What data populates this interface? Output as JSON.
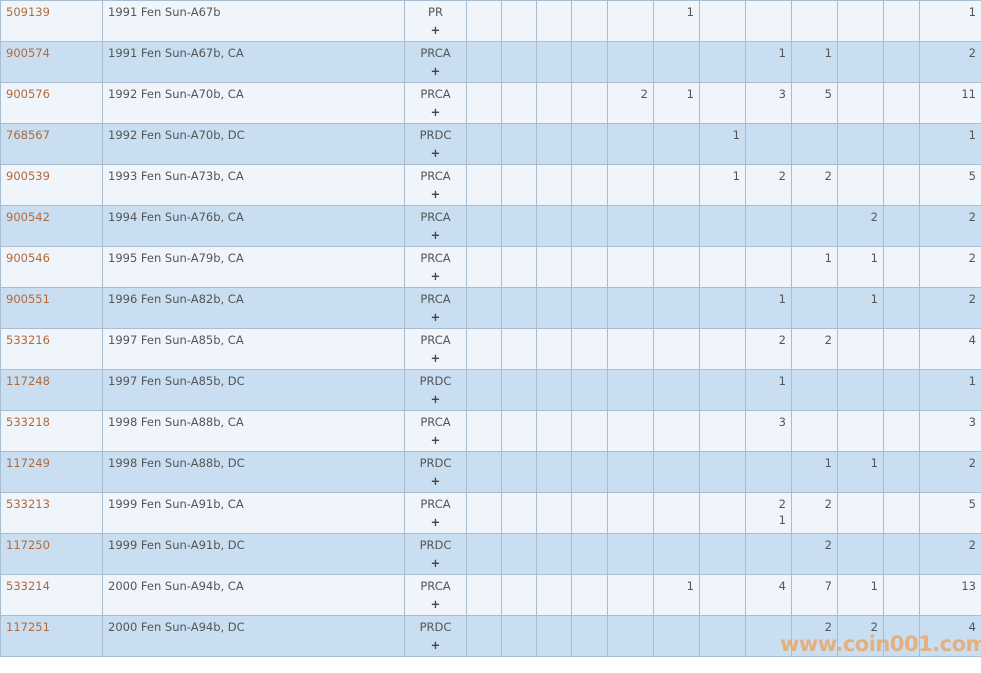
{
  "watermark": "www.coin001.com",
  "colors": {
    "link": "#b5683a",
    "row_odd": "#eff5fb",
    "row_even": "#c9dff1",
    "border": "#a9bdd0"
  },
  "expand_label": "+",
  "rows": [
    {
      "id": "509139",
      "desc": "1991 Fen Sun-A67b",
      "type": "PR",
      "grades": [
        "",
        "",
        "",
        "",
        "",
        "1",
        "",
        "",
        "",
        "",
        "",
        ""
      ],
      "total": "1"
    },
    {
      "id": "900574",
      "desc": "1991 Fen Sun-A67b, CA",
      "type": "PRCA",
      "grades": [
        "",
        "",
        "",
        "",
        "",
        "",
        "",
        "1",
        "1",
        "",
        "",
        ""
      ],
      "total": "2"
    },
    {
      "id": "900576",
      "desc": "1992 Fen Sun-A70b, CA",
      "type": "PRCA",
      "grades": [
        "",
        "",
        "",
        "",
        "2",
        "1",
        "",
        "3",
        "5",
        "",
        ""
      ],
      "total": "11"
    },
    {
      "id": "768567",
      "desc": "1992 Fen Sun-A70b, DC",
      "type": "PRDC",
      "grades": [
        "",
        "",
        "",
        "",
        "",
        "",
        "1",
        "",
        "",
        "",
        ""
      ],
      "total": "1"
    },
    {
      "id": "900539",
      "desc": "1993 Fen Sun-A73b, CA",
      "type": "PRCA",
      "grades": [
        "",
        "",
        "",
        "",
        "",
        "",
        "1",
        "2",
        "2",
        "",
        ""
      ],
      "total": "5"
    },
    {
      "id": "900542",
      "desc": "1994 Fen Sun-A76b, CA",
      "type": "PRCA",
      "grades": [
        "",
        "",
        "",
        "",
        "",
        "",
        "",
        "",
        "",
        "2",
        ""
      ],
      "total": "2"
    },
    {
      "id": "900546",
      "desc": "1995 Fen Sun-A79b, CA",
      "type": "PRCA",
      "grades": [
        "",
        "",
        "",
        "",
        "",
        "",
        "",
        "",
        "1",
        "1",
        ""
      ],
      "total": "2"
    },
    {
      "id": "900551",
      "desc": "1996 Fen Sun-A82b, CA",
      "type": "PRCA",
      "grades": [
        "",
        "",
        "",
        "",
        "",
        "",
        "",
        "1",
        "",
        "1",
        ""
      ],
      "total": "2"
    },
    {
      "id": "533216",
      "desc": "1997 Fen Sun-A85b, CA",
      "type": "PRCA",
      "grades": [
        "",
        "",
        "",
        "",
        "",
        "",
        "",
        "2",
        "2",
        "",
        ""
      ],
      "total": "4"
    },
    {
      "id": "117248",
      "desc": "1997 Fen Sun-A85b, DC",
      "type": "PRDC",
      "grades": [
        "",
        "",
        "",
        "",
        "",
        "",
        "",
        "1",
        "",
        "",
        ""
      ],
      "total": "1"
    },
    {
      "id": "533218",
      "desc": "1998 Fen Sun-A88b, CA",
      "type": "PRCA",
      "grades": [
        "",
        "",
        "",
        "",
        "",
        "",
        "",
        "3",
        "",
        "",
        ""
      ],
      "total": "3"
    },
    {
      "id": "117249",
      "desc": "1998 Fen Sun-A88b, DC",
      "type": "PRDC",
      "grades": [
        "",
        "",
        "",
        "",
        "",
        "",
        "",
        "",
        "1",
        "1",
        ""
      ],
      "total": "2"
    },
    {
      "id": "533213",
      "desc": "1999 Fen Sun-A91b, CA",
      "type": "PRCA",
      "grades": [
        "",
        "",
        "",
        "",
        "",
        "",
        "",
        "2\n1",
        "2",
        "",
        ""
      ],
      "total": "5"
    },
    {
      "id": "117250",
      "desc": "1999 Fen Sun-A91b, DC",
      "type": "PRDC",
      "grades": [
        "",
        "",
        "",
        "",
        "",
        "",
        "",
        "",
        "2",
        "",
        ""
      ],
      "total": "2"
    },
    {
      "id": "533214",
      "desc": "2000 Fen Sun-A94b, CA",
      "type": "PRCA",
      "grades": [
        "",
        "",
        "",
        "",
        "",
        "1",
        "",
        "4",
        "7",
        "1",
        ""
      ],
      "total": "13"
    },
    {
      "id": "117251",
      "desc": "2000 Fen Sun-A94b, DC",
      "type": "PRDC",
      "grades": [
        "",
        "",
        "",
        "",
        "",
        "",
        "",
        "",
        "2",
        "2",
        ""
      ],
      "total": "4"
    }
  ]
}
